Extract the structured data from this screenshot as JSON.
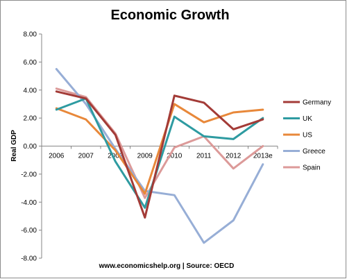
{
  "chart_data": {
    "type": "line",
    "title": "Economic Growth",
    "xlabel": "",
    "ylabel": "Real GDP",
    "categories": [
      "2006",
      "2007",
      "2008",
      "2009",
      "2010",
      "2011",
      "2012",
      "2013e"
    ],
    "ylim": [
      -8,
      8
    ],
    "yticks": [
      "8.00",
      "6.00",
      "4.00",
      "2.00",
      "0.00",
      "-2.00",
      "-4.00",
      "-6.00",
      "-8.00"
    ],
    "ytick_values": [
      8,
      6,
      4,
      2,
      0,
      -2,
      -4,
      -6,
      -8
    ],
    "grid": false,
    "legend_position": "right",
    "series": [
      {
        "name": "Germany",
        "color": "#a33b37",
        "values": [
          3.9,
          3.4,
          0.8,
          -5.1,
          3.6,
          3.1,
          1.2,
          1.9
        ]
      },
      {
        "name": "UK",
        "color": "#2e9ba1",
        "values": [
          2.6,
          3.4,
          -1.1,
          -4.4,
          2.1,
          0.7,
          0.5,
          2.0
        ]
      },
      {
        "name": "US",
        "color": "#e8883a",
        "values": [
          2.7,
          1.9,
          -0.3,
          -3.4,
          3.0,
          1.7,
          2.4,
          2.6
        ]
      },
      {
        "name": "Greece",
        "color": "#97aed6",
        "values": [
          5.5,
          3.0,
          -0.2,
          -3.2,
          -3.5,
          -6.9,
          -5.3,
          -1.3
        ]
      },
      {
        "name": "Spain",
        "color": "#dc9a99",
        "values": [
          4.1,
          3.5,
          0.9,
          -3.7,
          -0.1,
          0.7,
          -1.6,
          0.0
        ]
      }
    ],
    "source": "www.economicshelp.org | Source: OECD"
  }
}
